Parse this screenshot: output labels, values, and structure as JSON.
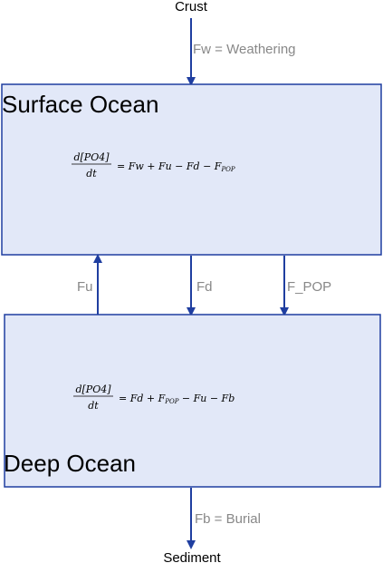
{
  "colors": {
    "box_fill": "#e2e8f8",
    "box_stroke": "#1f3ea0",
    "arrow": "#1f3ea0",
    "flux_text": "#888888"
  },
  "nodes": {
    "crust": "Crust",
    "sediment": "Sediment"
  },
  "surface": {
    "title": "Surface Ocean",
    "equation": {
      "numerator": "d[PO4]",
      "denominator": "dt",
      "rhs_prefix": "= Fw + Fu − Fd − ",
      "rhs_last_main": "F",
      "rhs_last_sub": "POP"
    }
  },
  "deep": {
    "title": "Deep Ocean",
    "equation": {
      "numerator": "d[PO4]",
      "denominator": "dt",
      "rhs_prefix": "= Fd + ",
      "rhs_mid_main": "F",
      "rhs_mid_sub": "POP",
      "rhs_suffix": " − Fu − Fb"
    }
  },
  "fluxes": {
    "weathering": "Fw = Weathering",
    "upwelling": "Fu",
    "downwelling": "Fd",
    "pop": "F_POP",
    "burial": "Fb = Burial"
  }
}
